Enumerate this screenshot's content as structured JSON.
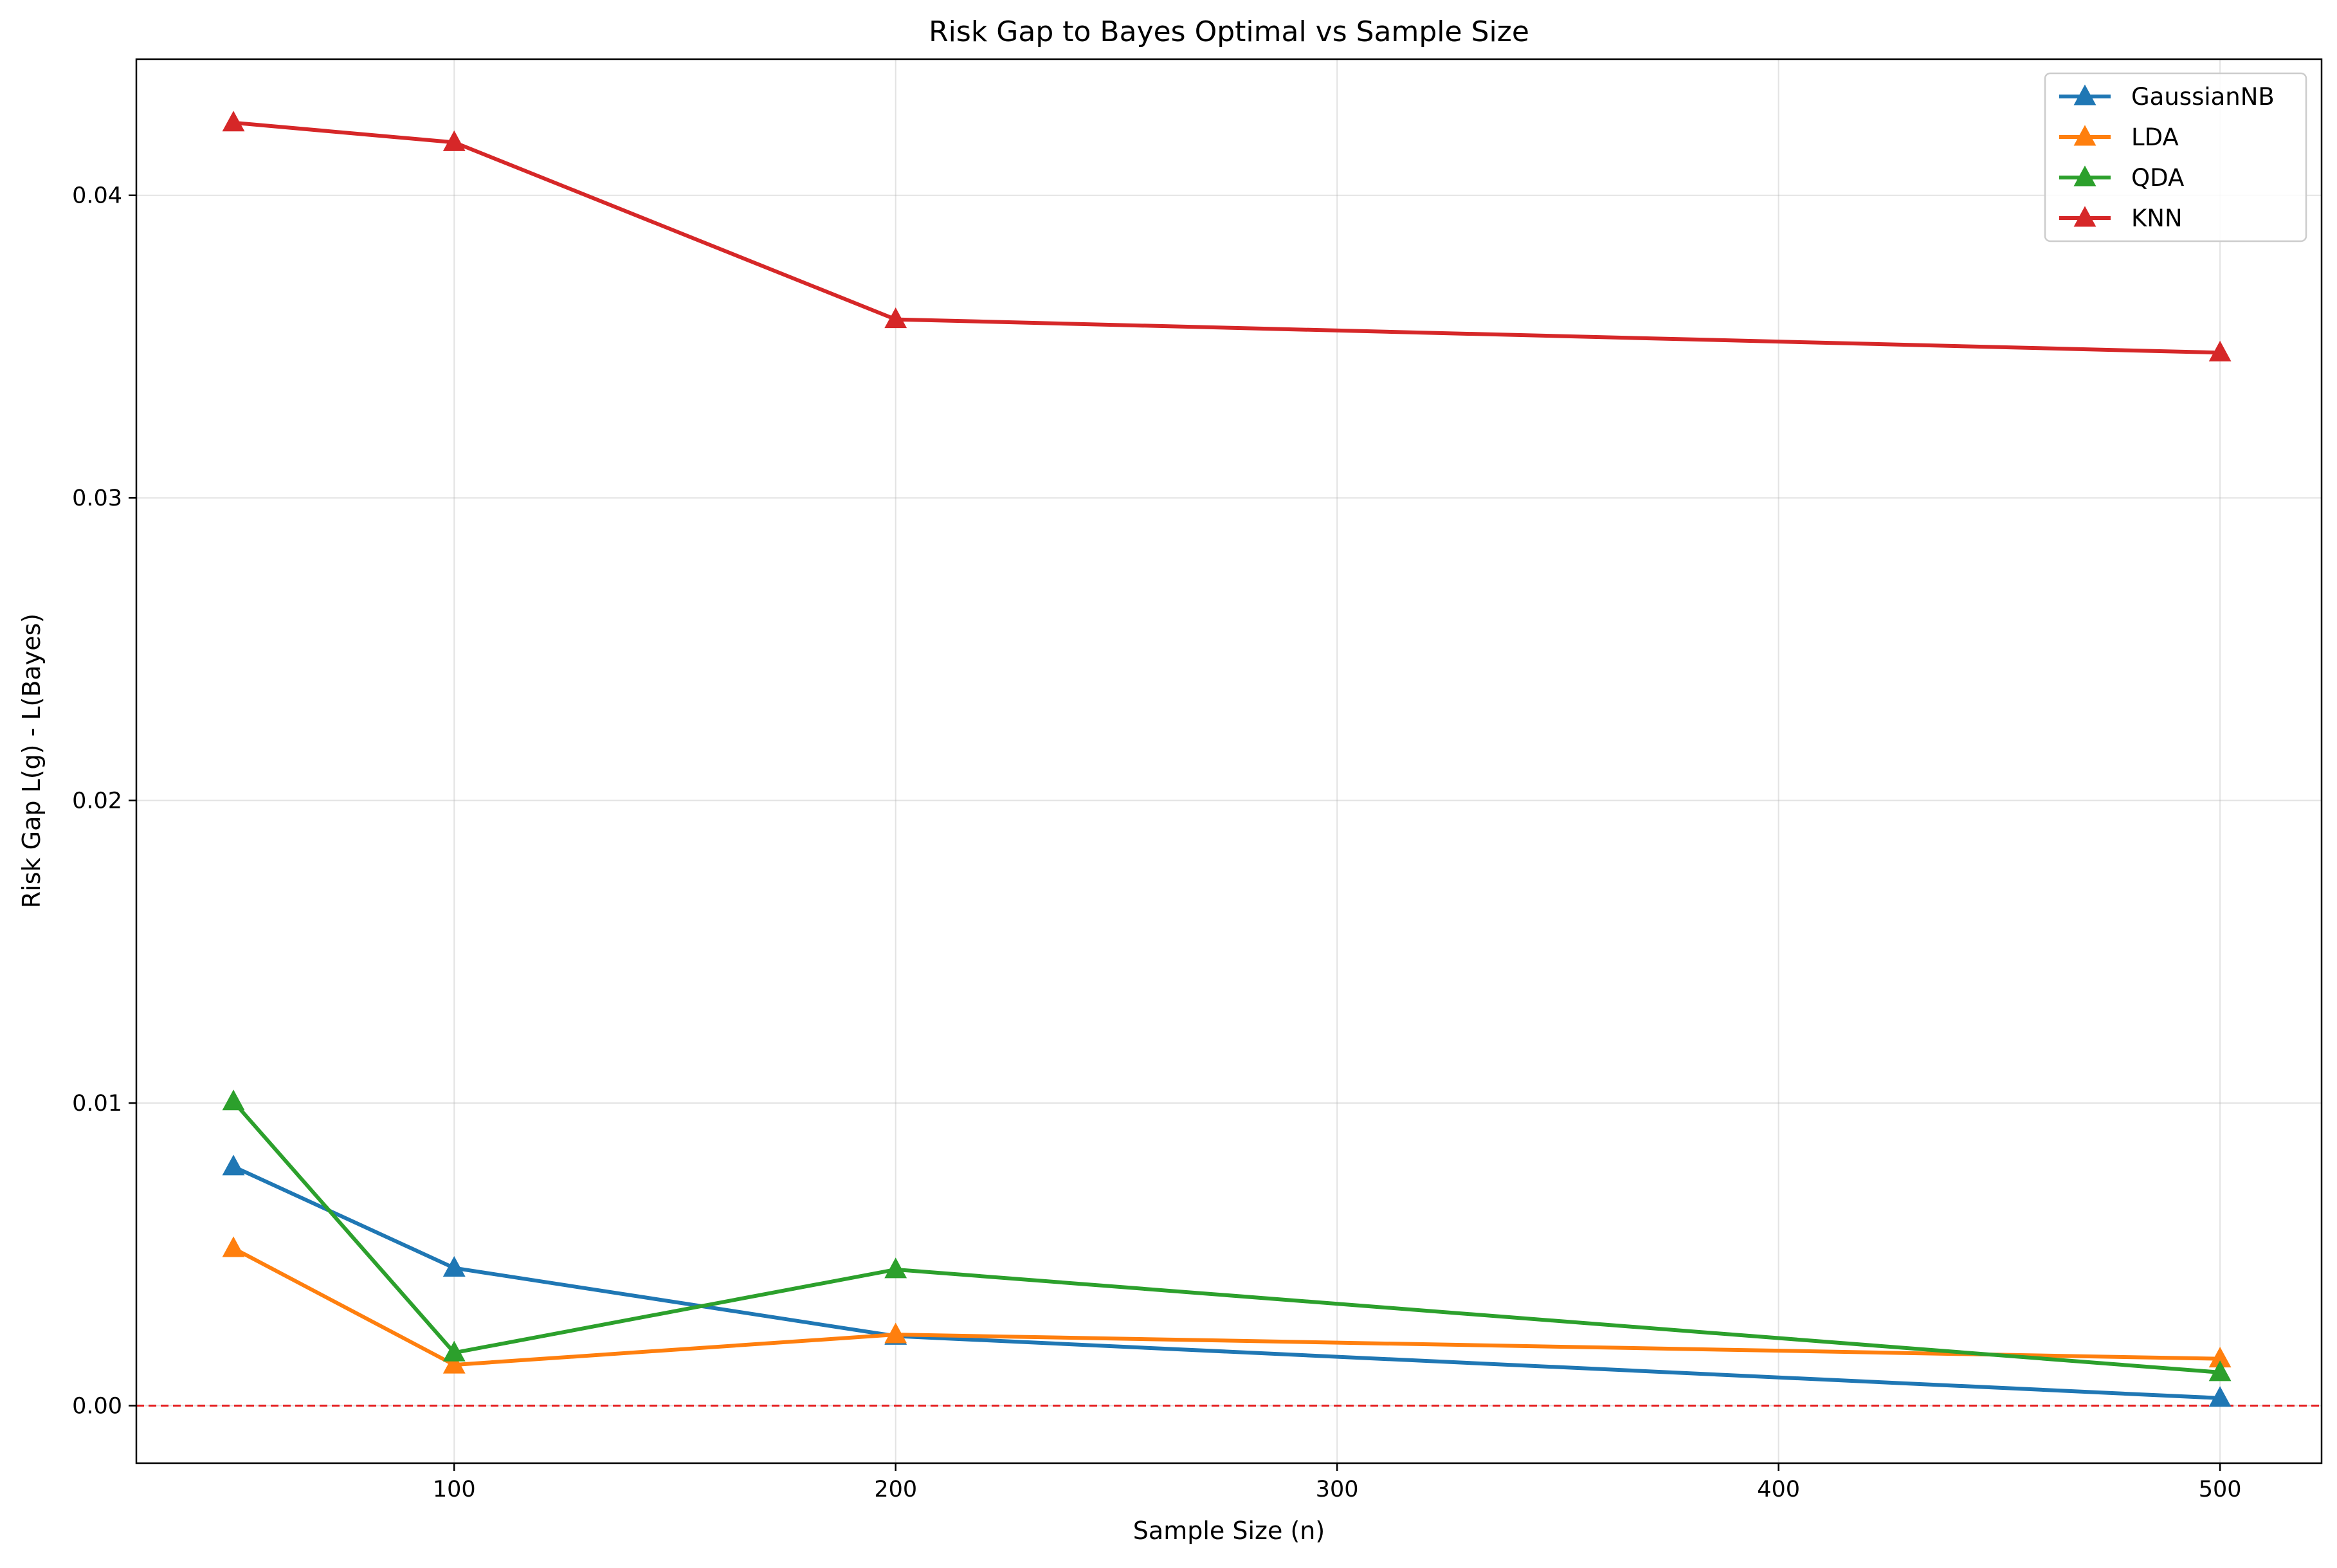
{
  "chart_data": {
    "type": "line",
    "title": "Risk Gap to Bayes Optimal vs Sample Size",
    "xlabel": "Sample Size (n)",
    "ylabel": "Risk Gap L(g) - L(Bayes)",
    "xlim": [
      28,
      523
    ],
    "ylim": [
      -0.0019,
      0.0445
    ],
    "xticks": [
      100,
      200,
      300,
      400,
      500
    ],
    "xtick_labels": [
      "100",
      "200",
      "300",
      "400",
      "500"
    ],
    "yticks": [
      0.0,
      0.01,
      0.02,
      0.03,
      0.04
    ],
    "ytick_labels": [
      "0.00",
      "0.01",
      "0.02",
      "0.03",
      "0.04"
    ],
    "grid": true,
    "legend": "top-right",
    "marker": "triangle",
    "reference_line": {
      "y": 0.0,
      "style": "dashed",
      "color": "#e41a1c"
    },
    "x": [
      50,
      100,
      200,
      500
    ],
    "series": [
      {
        "name": "GaussianNB",
        "color": "#1f77b4",
        "values": [
          0.0079,
          0.00455,
          0.0023,
          0.00025
        ]
      },
      {
        "name": "LDA",
        "color": "#ff7f0e",
        "values": [
          0.0052,
          0.00135,
          0.00235,
          0.00155
        ]
      },
      {
        "name": "QDA",
        "color": "#2ca02c",
        "values": [
          0.01005,
          0.00175,
          0.0045,
          0.0011
        ]
      },
      {
        "name": "KNN",
        "color": "#d62728",
        "values": [
          0.0424,
          0.04175,
          0.0359,
          0.0348
        ]
      }
    ]
  }
}
